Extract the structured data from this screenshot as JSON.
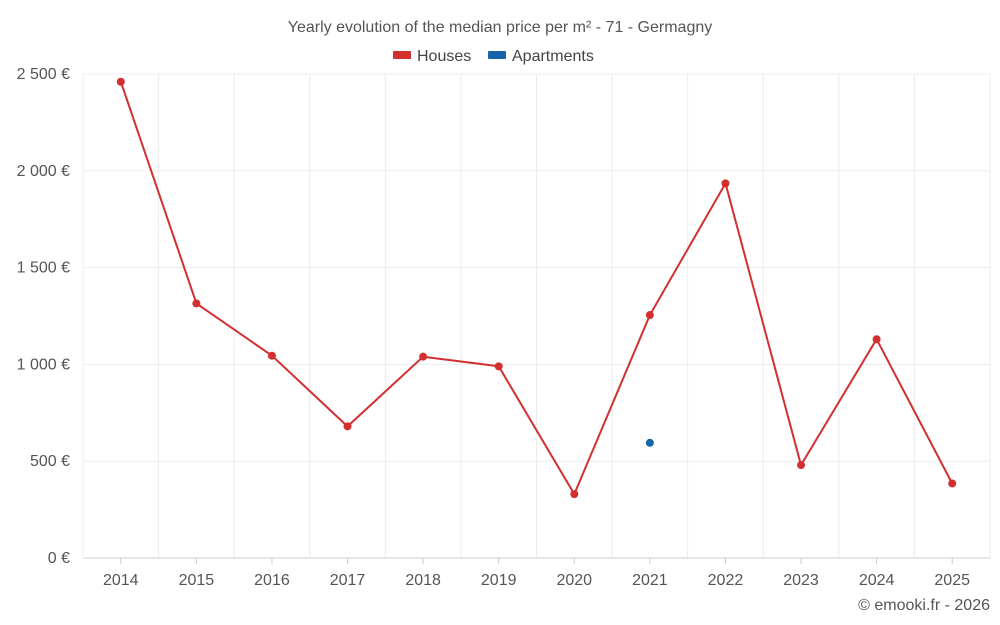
{
  "chart_data": {
    "type": "line",
    "title": "Yearly evolution of the median price per m² - 71 - Germagny",
    "categories": [
      "2014",
      "2015",
      "2016",
      "2017",
      "2018",
      "2019",
      "2020",
      "2021",
      "2022",
      "2023",
      "2024",
      "2025"
    ],
    "series": [
      {
        "name": "Houses",
        "color": "#d32f2f",
        "values": [
          2460,
          1315,
          1045,
          680,
          1040,
          990,
          330,
          1255,
          1935,
          480,
          1130,
          385
        ]
      },
      {
        "name": "Apartments",
        "color": "#1565a8",
        "values": [
          null,
          null,
          null,
          null,
          null,
          null,
          null,
          595,
          null,
          null,
          null,
          null
        ]
      }
    ],
    "yticks": [
      0,
      500,
      1000,
      1500,
      2000,
      2500
    ],
    "ytick_labels": [
      "0 €",
      "500 €",
      "1 000 €",
      "1 500 €",
      "2 000 €",
      "2 500 €"
    ],
    "ylim": [
      0,
      2500
    ],
    "xlabel": "",
    "ylabel": "",
    "grid": true,
    "legend_position": "top-center"
  },
  "credit": "© emooki.fr - 2026"
}
